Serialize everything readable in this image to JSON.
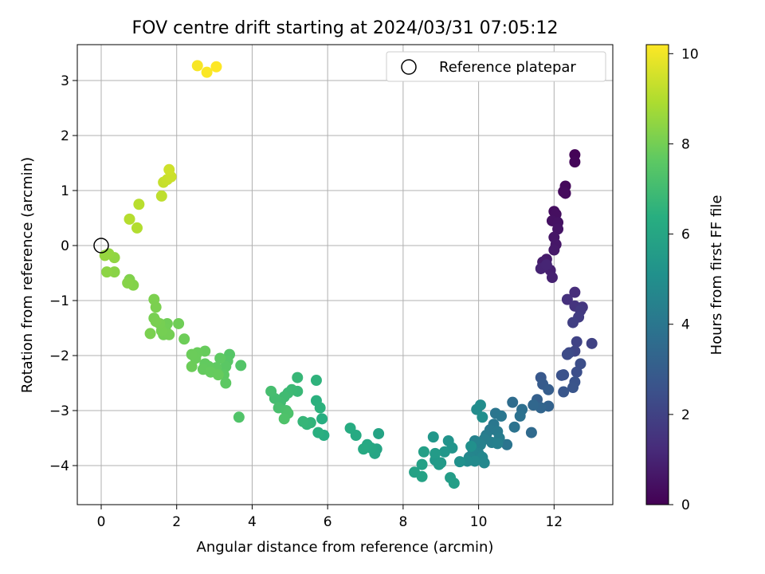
{
  "chart_data": {
    "type": "scatter",
    "title": "FOV centre drift starting at 2024/03/31 07:05:12",
    "xlabel": "Angular distance from reference (arcmin)",
    "ylabel": "Rotation from reference (arcmin)",
    "xlim": [
      -0.6,
      13.6
    ],
    "ylim": [
      -4.75,
      3.65
    ],
    "xticks": [
      "0",
      "2",
      "4",
      "6",
      "8",
      "10",
      "12"
    ],
    "yticks": [
      "−4",
      "−3",
      "−2",
      "−1",
      "0",
      "1",
      "2",
      "3"
    ],
    "grid": true,
    "legend": {
      "position": "top-right",
      "entries": [
        "Reference platepar"
      ]
    },
    "reference_point": {
      "x": 0,
      "y": 0
    },
    "colorbar": {
      "label": "Hours from first FF file",
      "range": [
        0,
        10.2
      ],
      "ticks": [
        "0",
        "2",
        "4",
        "6",
        "8",
        "10"
      ],
      "colormap": "viridis"
    },
    "points": [
      {
        "x": 12.55,
        "y": 1.65,
        "h": 0.1
      },
      {
        "x": 12.55,
        "y": 1.52,
        "h": 0.15
      },
      {
        "x": 12.3,
        "y": 1.08,
        "h": 0.2
      },
      {
        "x": 12.25,
        "y": 0.98,
        "h": 0.25
      },
      {
        "x": 12.3,
        "y": 0.95,
        "h": 0.3
      },
      {
        "x": 12.0,
        "y": 0.62,
        "h": 0.35
      },
      {
        "x": 12.05,
        "y": 0.57,
        "h": 0.4
      },
      {
        "x": 11.95,
        "y": 0.45,
        "h": 0.45
      },
      {
        "x": 12.1,
        "y": 0.42,
        "h": 0.5
      },
      {
        "x": 12.1,
        "y": 0.3,
        "h": 0.55
      },
      {
        "x": 12.0,
        "y": 0.15,
        "h": 0.6
      },
      {
        "x": 12.05,
        "y": 0.02,
        "h": 0.65
      },
      {
        "x": 12.0,
        "y": -0.08,
        "h": 0.7
      },
      {
        "x": 11.8,
        "y": -0.25,
        "h": 0.75
      },
      {
        "x": 11.7,
        "y": -0.3,
        "h": 0.8
      },
      {
        "x": 11.75,
        "y": -0.38,
        "h": 0.85
      },
      {
        "x": 11.9,
        "y": -0.45,
        "h": 0.9
      },
      {
        "x": 11.95,
        "y": -0.58,
        "h": 0.95
      },
      {
        "x": 11.65,
        "y": -0.42,
        "h": 1.0
      },
      {
        "x": 11.8,
        "y": -0.35,
        "h": 1.05
      },
      {
        "x": 12.55,
        "y": -0.85,
        "h": 1.3
      },
      {
        "x": 12.35,
        "y": -0.98,
        "h": 1.4
      },
      {
        "x": 12.55,
        "y": -1.1,
        "h": 1.5
      },
      {
        "x": 12.75,
        "y": -1.12,
        "h": 1.6
      },
      {
        "x": 12.7,
        "y": -1.18,
        "h": 1.7
      },
      {
        "x": 12.65,
        "y": -1.3,
        "h": 1.8
      },
      {
        "x": 12.5,
        "y": -1.4,
        "h": 1.9
      },
      {
        "x": 13.0,
        "y": -1.78,
        "h": 2.0
      },
      {
        "x": 12.6,
        "y": -1.75,
        "h": 2.05
      },
      {
        "x": 12.55,
        "y": -1.92,
        "h": 2.1
      },
      {
        "x": 12.4,
        "y": -1.95,
        "h": 2.2
      },
      {
        "x": 12.35,
        "y": -1.98,
        "h": 2.3
      },
      {
        "x": 12.7,
        "y": -2.15,
        "h": 2.4
      },
      {
        "x": 12.6,
        "y": -2.3,
        "h": 2.45
      },
      {
        "x": 12.25,
        "y": -2.35,
        "h": 2.5
      },
      {
        "x": 12.2,
        "y": -2.36,
        "h": 2.55
      },
      {
        "x": 12.55,
        "y": -2.48,
        "h": 2.6
      },
      {
        "x": 12.5,
        "y": -2.58,
        "h": 2.65
      },
      {
        "x": 12.25,
        "y": -2.66,
        "h": 2.7
      },
      {
        "x": 11.65,
        "y": -2.4,
        "h": 2.8
      },
      {
        "x": 11.7,
        "y": -2.52,
        "h": 2.9
      },
      {
        "x": 11.85,
        "y": -2.62,
        "h": 3.0
      },
      {
        "x": 11.55,
        "y": -2.8,
        "h": 3.1
      },
      {
        "x": 11.85,
        "y": -2.92,
        "h": 3.2
      },
      {
        "x": 11.65,
        "y": -2.95,
        "h": 3.3
      },
      {
        "x": 11.45,
        "y": -2.9,
        "h": 3.4
      },
      {
        "x": 11.4,
        "y": -3.4,
        "h": 3.5
      },
      {
        "x": 10.9,
        "y": -2.85,
        "h": 3.6
      },
      {
        "x": 11.15,
        "y": -2.98,
        "h": 3.7
      },
      {
        "x": 11.1,
        "y": -3.1,
        "h": 3.8
      },
      {
        "x": 10.95,
        "y": -3.3,
        "h": 3.85
      },
      {
        "x": 10.75,
        "y": -3.62,
        "h": 3.9
      },
      {
        "x": 10.45,
        "y": -3.05,
        "h": 3.95
      },
      {
        "x": 10.6,
        "y": -3.1,
        "h": 4.0
      },
      {
        "x": 10.4,
        "y": -3.25,
        "h": 4.05
      },
      {
        "x": 10.3,
        "y": -3.35,
        "h": 4.1
      },
      {
        "x": 10.5,
        "y": -3.38,
        "h": 4.15
      },
      {
        "x": 10.2,
        "y": -3.45,
        "h": 4.2
      },
      {
        "x": 10.55,
        "y": -3.5,
        "h": 4.25
      },
      {
        "x": 10.15,
        "y": -3.52,
        "h": 4.3
      },
      {
        "x": 10.35,
        "y": -3.58,
        "h": 4.35
      },
      {
        "x": 10.5,
        "y": -3.6,
        "h": 4.4
      },
      {
        "x": 10.05,
        "y": -3.62,
        "h": 4.45
      },
      {
        "x": 9.9,
        "y": -3.55,
        "h": 4.5
      },
      {
        "x": 10.0,
        "y": -3.78,
        "h": 4.55
      },
      {
        "x": 9.85,
        "y": -3.72,
        "h": 4.6
      },
      {
        "x": 9.75,
        "y": -3.85,
        "h": 4.65
      },
      {
        "x": 10.1,
        "y": -3.85,
        "h": 4.7
      },
      {
        "x": 10.15,
        "y": -3.95,
        "h": 4.75
      },
      {
        "x": 9.9,
        "y": -3.92,
        "h": 4.8
      },
      {
        "x": 9.7,
        "y": -3.92,
        "h": 4.85
      },
      {
        "x": 9.95,
        "y": -2.98,
        "h": 4.9
      },
      {
        "x": 10.05,
        "y": -2.9,
        "h": 4.95
      },
      {
        "x": 10.1,
        "y": -3.12,
        "h": 5.0
      },
      {
        "x": 9.8,
        "y": -3.65,
        "h": 5.05
      },
      {
        "x": 9.5,
        "y": -3.93,
        "h": 5.1
      },
      {
        "x": 9.2,
        "y": -3.55,
        "h": 5.2
      },
      {
        "x": 9.3,
        "y": -3.68,
        "h": 5.25
      },
      {
        "x": 9.1,
        "y": -3.75,
        "h": 5.3
      },
      {
        "x": 8.8,
        "y": -3.48,
        "h": 5.35
      },
      {
        "x": 8.85,
        "y": -3.9,
        "h": 5.4
      },
      {
        "x": 9.0,
        "y": -3.95,
        "h": 5.45
      },
      {
        "x": 8.95,
        "y": -3.98,
        "h": 5.5
      },
      {
        "x": 8.85,
        "y": -3.78,
        "h": 5.55
      },
      {
        "x": 9.25,
        "y": -4.22,
        "h": 5.6
      },
      {
        "x": 9.35,
        "y": -4.32,
        "h": 5.65
      },
      {
        "x": 8.55,
        "y": -3.75,
        "h": 5.7
      },
      {
        "x": 8.5,
        "y": -3.98,
        "h": 5.75
      },
      {
        "x": 8.3,
        "y": -4.12,
        "h": 5.8
      },
      {
        "x": 8.5,
        "y": -4.2,
        "h": 5.85
      },
      {
        "x": 7.35,
        "y": -3.42,
        "h": 5.9
      },
      {
        "x": 7.3,
        "y": -3.7,
        "h": 5.95
      },
      {
        "x": 7.25,
        "y": -3.78,
        "h": 6.0
      },
      {
        "x": 7.15,
        "y": -3.68,
        "h": 6.05
      },
      {
        "x": 7.05,
        "y": -3.62,
        "h": 6.1
      },
      {
        "x": 6.95,
        "y": -3.7,
        "h": 6.15
      },
      {
        "x": 6.75,
        "y": -3.45,
        "h": 6.2
      },
      {
        "x": 6.6,
        "y": -3.32,
        "h": 6.25
      },
      {
        "x": 5.9,
        "y": -3.45,
        "h": 6.3
      },
      {
        "x": 5.85,
        "y": -3.15,
        "h": 6.35
      },
      {
        "x": 5.75,
        "y": -3.4,
        "h": 6.4
      },
      {
        "x": 5.7,
        "y": -2.82,
        "h": 6.45
      },
      {
        "x": 5.8,
        "y": -2.95,
        "h": 6.5
      },
      {
        "x": 5.7,
        "y": -2.45,
        "h": 6.55
      },
      {
        "x": 5.55,
        "y": -3.22,
        "h": 6.6
      },
      {
        "x": 5.45,
        "y": -3.25,
        "h": 6.65
      },
      {
        "x": 5.35,
        "y": -3.2,
        "h": 6.7
      },
      {
        "x": 5.2,
        "y": -2.4,
        "h": 6.75
      },
      {
        "x": 5.2,
        "y": -2.65,
        "h": 6.8
      },
      {
        "x": 5.05,
        "y": -2.62,
        "h": 6.85
      },
      {
        "x": 4.95,
        "y": -2.68,
        "h": 6.9
      },
      {
        "x": 4.85,
        "y": -2.75,
        "h": 6.95
      },
      {
        "x": 4.75,
        "y": -2.85,
        "h": 7.0
      },
      {
        "x": 4.6,
        "y": -2.78,
        "h": 7.05
      },
      {
        "x": 4.5,
        "y": -2.65,
        "h": 7.1
      },
      {
        "x": 4.7,
        "y": -2.95,
        "h": 7.15
      },
      {
        "x": 4.9,
        "y": -3.0,
        "h": 7.2
      },
      {
        "x": 4.95,
        "y": -3.05,
        "h": 7.25
      },
      {
        "x": 4.85,
        "y": -3.15,
        "h": 7.3
      },
      {
        "x": 3.65,
        "y": -3.12,
        "h": 7.35
      },
      {
        "x": 3.7,
        "y": -2.18,
        "h": 7.4
      },
      {
        "x": 3.4,
        "y": -1.98,
        "h": 7.45
      },
      {
        "x": 3.35,
        "y": -2.1,
        "h": 7.5
      },
      {
        "x": 3.3,
        "y": -2.2,
        "h": 7.55
      },
      {
        "x": 3.25,
        "y": -2.35,
        "h": 7.6
      },
      {
        "x": 3.3,
        "y": -2.5,
        "h": 7.62
      },
      {
        "x": 3.15,
        "y": -2.05,
        "h": 7.64
      },
      {
        "x": 3.05,
        "y": -2.22,
        "h": 7.66
      },
      {
        "x": 2.95,
        "y": -2.25,
        "h": 7.68
      },
      {
        "x": 2.85,
        "y": -2.2,
        "h": 7.7
      },
      {
        "x": 2.75,
        "y": -2.15,
        "h": 7.72
      },
      {
        "x": 2.7,
        "y": -2.25,
        "h": 7.74
      },
      {
        "x": 2.9,
        "y": -2.3,
        "h": 7.76
      },
      {
        "x": 3.1,
        "y": -2.35,
        "h": 7.78
      },
      {
        "x": 2.75,
        "y": -1.92,
        "h": 7.8
      },
      {
        "x": 2.55,
        "y": -1.95,
        "h": 7.82
      },
      {
        "x": 2.5,
        "y": -2.05,
        "h": 7.84
      },
      {
        "x": 2.4,
        "y": -1.98,
        "h": 7.86
      },
      {
        "x": 2.4,
        "y": -2.2,
        "h": 7.88
      },
      {
        "x": 2.2,
        "y": -1.7,
        "h": 7.9
      },
      {
        "x": 2.05,
        "y": -1.42,
        "h": 7.92
      },
      {
        "x": 1.75,
        "y": -1.42,
        "h": 7.94
      },
      {
        "x": 1.7,
        "y": -1.52,
        "h": 7.96
      },
      {
        "x": 1.65,
        "y": -1.62,
        "h": 7.98
      },
      {
        "x": 1.8,
        "y": -1.62,
        "h": 8.0
      },
      {
        "x": 1.6,
        "y": -1.55,
        "h": 8.02
      },
      {
        "x": 1.55,
        "y": -1.42,
        "h": 8.04
      },
      {
        "x": 1.4,
        "y": -1.32,
        "h": 8.06
      },
      {
        "x": 1.45,
        "y": -1.38,
        "h": 8.08
      },
      {
        "x": 1.3,
        "y": -1.6,
        "h": 8.1
      },
      {
        "x": 1.45,
        "y": -1.12,
        "h": 8.12
      },
      {
        "x": 1.4,
        "y": -0.98,
        "h": 8.14
      },
      {
        "x": 0.75,
        "y": -0.62,
        "h": 8.2
      },
      {
        "x": 0.85,
        "y": -0.72,
        "h": 8.25
      },
      {
        "x": 0.7,
        "y": -0.68,
        "h": 8.3
      },
      {
        "x": 0.35,
        "y": -0.48,
        "h": 8.35
      },
      {
        "x": 0.15,
        "y": -0.48,
        "h": 8.4
      },
      {
        "x": 0.35,
        "y": -0.22,
        "h": 8.45
      },
      {
        "x": 0.2,
        "y": -0.15,
        "h": 8.5
      },
      {
        "x": 0.1,
        "y": -0.18,
        "h": 8.55
      },
      {
        "x": 0.95,
        "y": 0.32,
        "h": 9.0
      },
      {
        "x": 0.75,
        "y": 0.48,
        "h": 9.05
      },
      {
        "x": 1.0,
        "y": 0.75,
        "h": 9.1
      },
      {
        "x": 1.6,
        "y": 0.9,
        "h": 9.2
      },
      {
        "x": 1.65,
        "y": 1.15,
        "h": 9.3
      },
      {
        "x": 1.75,
        "y": 1.2,
        "h": 9.35
      },
      {
        "x": 1.85,
        "y": 1.25,
        "h": 9.4
      },
      {
        "x": 1.8,
        "y": 1.38,
        "h": 9.45
      },
      {
        "x": 2.55,
        "y": 3.27,
        "h": 10.1
      },
      {
        "x": 2.8,
        "y": 3.15,
        "h": 10.15
      },
      {
        "x": 3.05,
        "y": 3.25,
        "h": 10.2
      }
    ]
  }
}
